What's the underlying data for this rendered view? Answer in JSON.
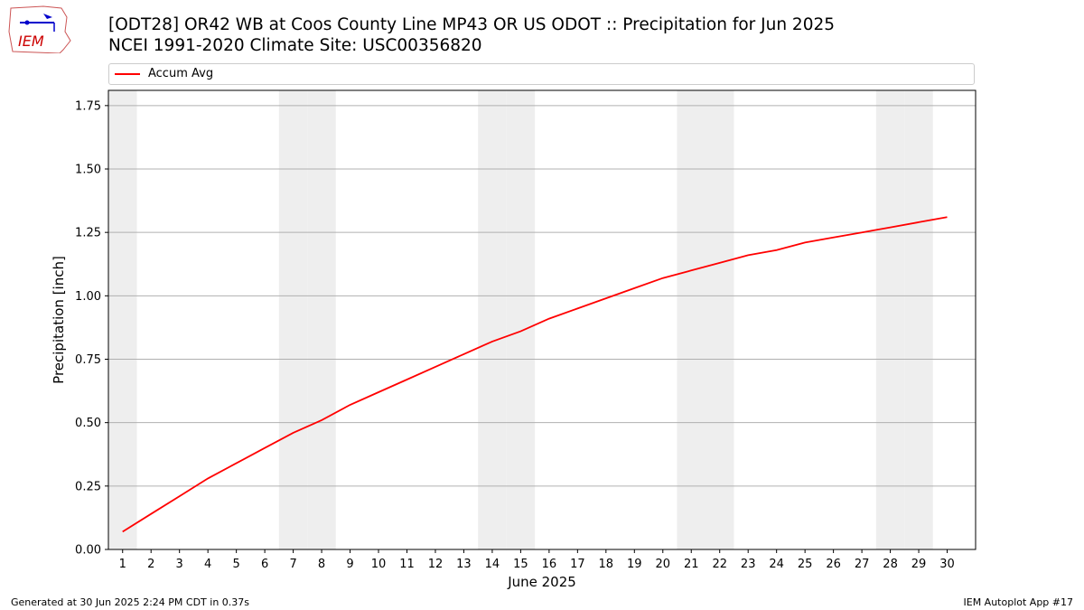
{
  "header": {
    "title_line1": "[ODT28] OR42 WB at Coos County Line MP43 OR US ODOT :: Precipitation for Jun 2025",
    "title_line2": "NCEI 1991-2020 Climate Site: USC00356820",
    "logo_text": "IEM"
  },
  "footer": {
    "generated": "Generated at 30 Jun 2025 2:24 PM CDT in 0.37s",
    "app": "IEM Autoplot App #17"
  },
  "chart_data": {
    "type": "line",
    "title": "[ODT28] OR42 WB at Coos County Line MP43 OR US ODOT :: Precipitation for Jun 2025",
    "subtitle": "NCEI 1991-2020 Climate Site: USC00356820",
    "xlabel": "June 2025",
    "ylabel": "Precipitation [inch]",
    "xlim": [
      0.5,
      31
    ],
    "ylim": [
      0,
      1.81
    ],
    "grid": "y",
    "legend": "top",
    "x": [
      1,
      2,
      3,
      4,
      5,
      6,
      7,
      8,
      9,
      10,
      11,
      12,
      13,
      14,
      15,
      16,
      17,
      18,
      19,
      20,
      21,
      22,
      23,
      24,
      25,
      26,
      27,
      28,
      29,
      30
    ],
    "yticks": [
      0.0,
      0.25,
      0.5,
      0.75,
      1.0,
      1.25,
      1.5,
      1.75
    ],
    "ytick_labels": [
      "0.00",
      "0.25",
      "0.50",
      "0.75",
      "1.00",
      "1.25",
      "1.50",
      "1.75"
    ],
    "weekend_days": [
      1,
      7,
      8,
      14,
      15,
      21,
      22,
      28,
      29
    ],
    "series": [
      {
        "name": "Accum Avg",
        "color": "#ff0000",
        "values": [
          0.07,
          0.14,
          0.21,
          0.28,
          0.34,
          0.4,
          0.46,
          0.51,
          0.57,
          0.62,
          0.67,
          0.72,
          0.77,
          0.82,
          0.86,
          0.91,
          0.95,
          0.99,
          1.03,
          1.07,
          1.1,
          1.13,
          1.16,
          1.18,
          1.21,
          1.23,
          1.25,
          1.27,
          1.29,
          1.31
        ]
      }
    ]
  }
}
